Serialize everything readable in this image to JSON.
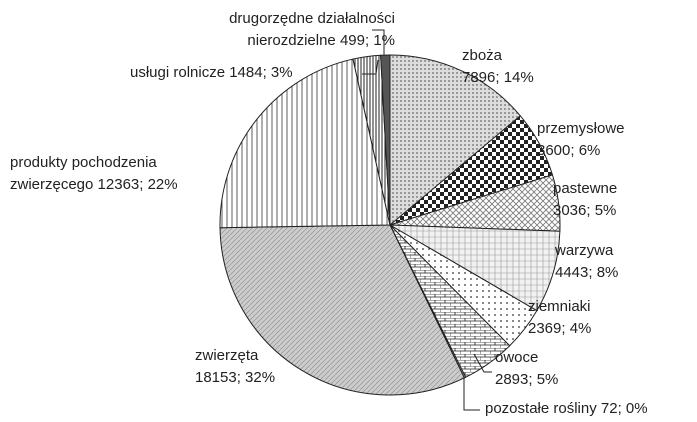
{
  "chart_data": {
    "type": "pie",
    "categories": [
      "zboża",
      "przemysłowe",
      "pastewne",
      "warzywa",
      "ziemniaki",
      "owoce",
      "pozostałe rośliny",
      "zwierzęta",
      "produkty pochodzenia zwierzęcego",
      "usługi rolnicze",
      "drugorzędne działalności nierozdzielne"
    ],
    "values": [
      7896,
      3600,
      3036,
      4443,
      2369,
      2893,
      72,
      18153,
      12363,
      1484,
      499
    ],
    "value_labels": [
      "7896; 14%",
      "3600; 6%",
      "3036; 5%",
      "4443; 8%",
      "2369; 4%",
      "2893; 5%",
      "72; 0%",
      "18153; 32%",
      "12363; 22%",
      "1484; 3%",
      "499; 1%"
    ]
  }
}
